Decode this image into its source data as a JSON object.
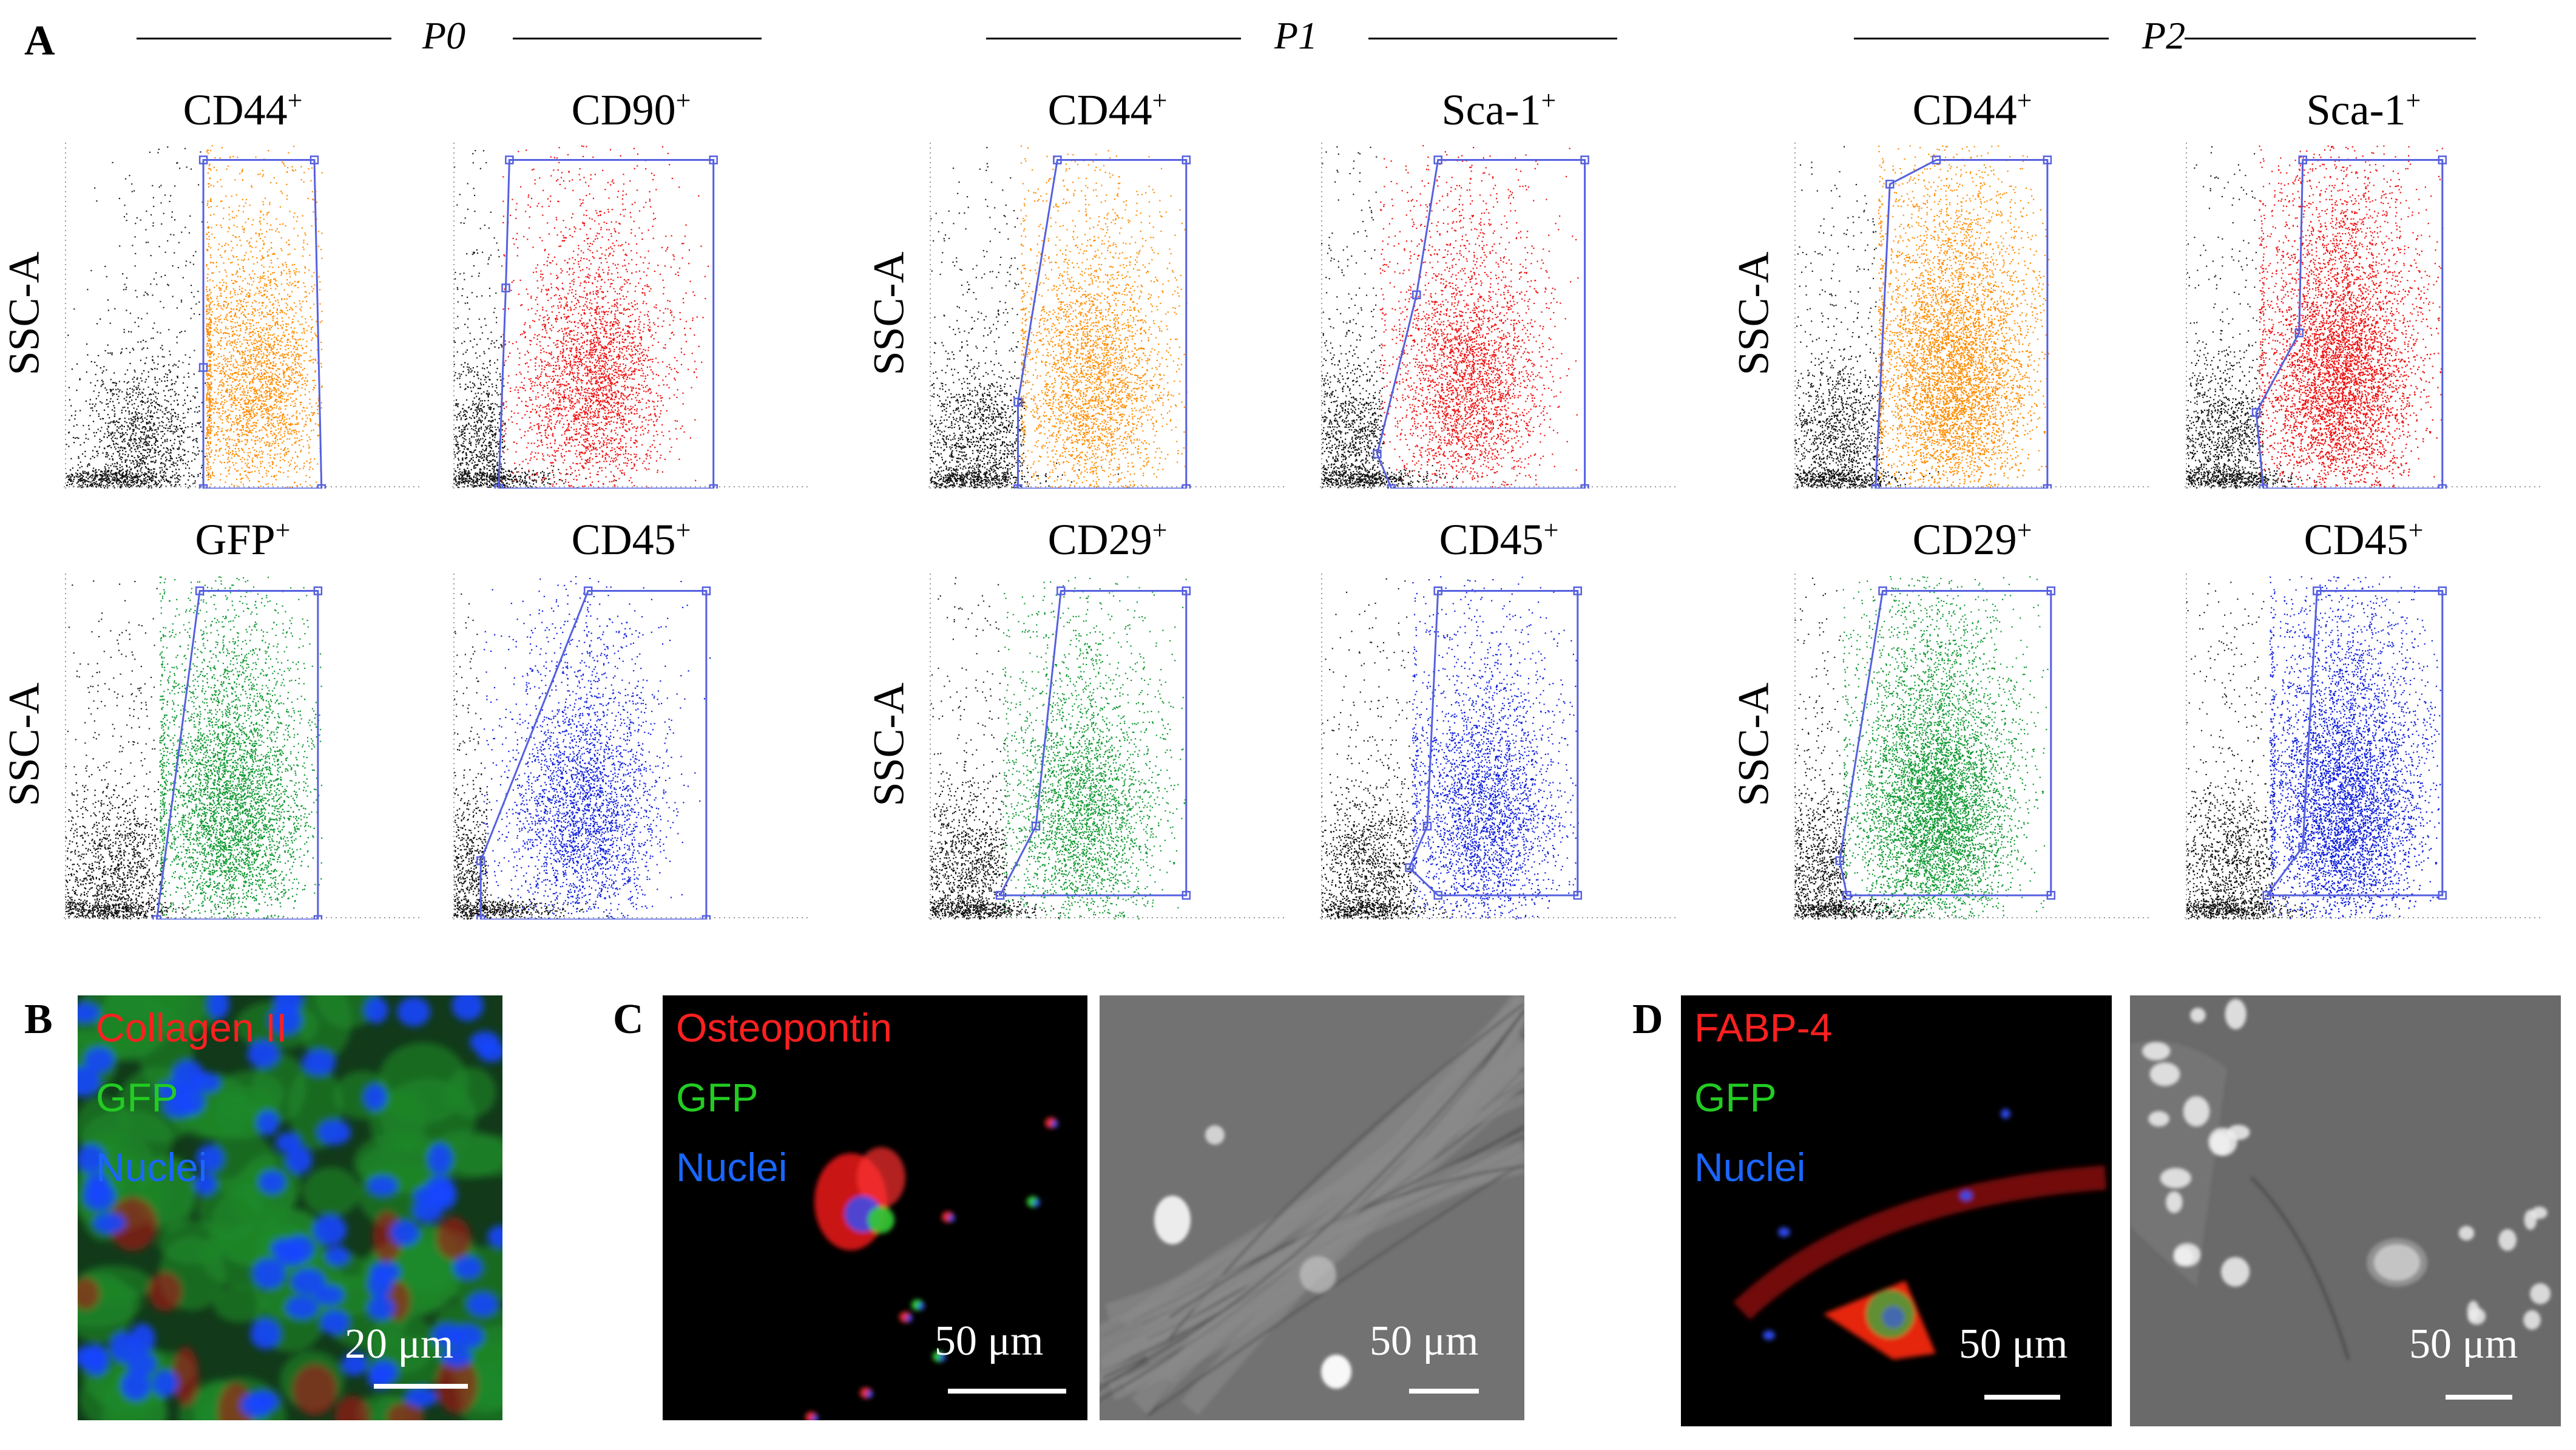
{
  "panels": {
    "A": "A",
    "B": "B",
    "C": "C",
    "D": "D"
  },
  "colors": {
    "orange": "#ff8c00",
    "red": "#ee1111",
    "green": "#119933",
    "blue": "#1020dd",
    "gate": "#5560e0",
    "label_red": "#ff2020",
    "label_green": "#22cc22",
    "label_blue": "#1a66ff"
  },
  "passages": [
    {
      "label": "P0",
      "plots": [
        {
          "marker": "CD44",
          "sup": "+",
          "color": "orange",
          "ylabel": "SSC-A"
        },
        {
          "marker": "CD90",
          "sup": "+",
          "color": "red",
          "ylabel": ""
        },
        {
          "marker": "GFP",
          "sup": "+",
          "color": "green",
          "ylabel": "SSC-A"
        },
        {
          "marker": "CD45",
          "sup": "+",
          "color": "blue",
          "ylabel": ""
        }
      ]
    },
    {
      "label": "P1",
      "plots": [
        {
          "marker": "CD44",
          "sup": "+",
          "color": "orange",
          "ylabel": "SSC-A"
        },
        {
          "marker": "Sca-1",
          "sup": "+",
          "color": "red",
          "ylabel": ""
        },
        {
          "marker": "CD29",
          "sup": "+",
          "color": "green",
          "ylabel": "SSC-A"
        },
        {
          "marker": "CD45",
          "sup": "+",
          "color": "blue",
          "ylabel": ""
        }
      ]
    },
    {
      "label": "P2",
      "plots": [
        {
          "marker": "CD44",
          "sup": "+",
          "color": "orange",
          "ylabel": "SSC-A"
        },
        {
          "marker": "Sca-1",
          "sup": "+",
          "color": "red",
          "ylabel": ""
        },
        {
          "marker": "CD29",
          "sup": "+",
          "color": "green",
          "ylabel": "SSC-A"
        },
        {
          "marker": "CD45",
          "sup": "+",
          "color": "blue",
          "ylabel": ""
        }
      ]
    }
  ],
  "panelB": {
    "labels": [
      "Collagen II",
      "GFP",
      "Nuclei"
    ],
    "scale": "20 μm"
  },
  "panelC": {
    "labels": [
      "Osteopontin",
      "GFP",
      "Nuclei"
    ],
    "scale_fluor": "50 μm",
    "scale_phase": "50 μm"
  },
  "panelD": {
    "labels": [
      "FABP-4",
      "GFP",
      "Nuclei"
    ],
    "scale_fluor": "50 μm",
    "scale_phase": "50 μm"
  }
}
